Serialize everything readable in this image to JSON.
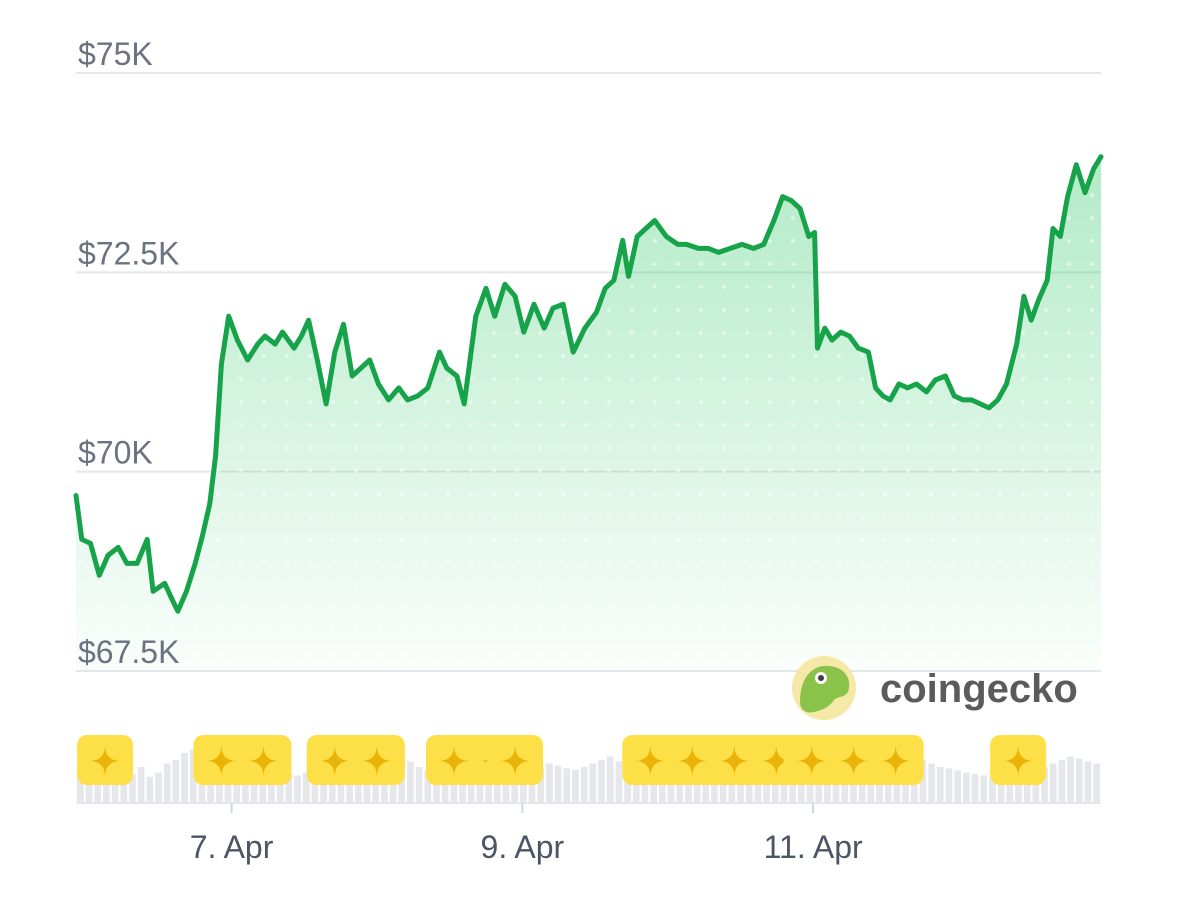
{
  "chart_data": {
    "type": "area",
    "title": "",
    "xlabel": "",
    "ylabel": "",
    "ylim": [
      67500,
      75000
    ],
    "y_ticks": [
      {
        "value": 75000,
        "label": "$75K"
      },
      {
        "value": 72500,
        "label": "$72.5K"
      },
      {
        "value": 70000,
        "label": "$70K"
      },
      {
        "value": 67500,
        "label": "$67.5K"
      }
    ],
    "x_range": [
      0,
      7.05
    ],
    "x_ticks": [
      {
        "day": 1.07,
        "label": "7. Apr"
      },
      {
        "day": 3.07,
        "label": "9. Apr"
      },
      {
        "day": 5.07,
        "label": "11. Apr"
      }
    ],
    "x_unit": "days from 6 Apr",
    "series": [
      {
        "color": "#16a34a",
        "points": [
          [
            0.0,
            69700
          ],
          [
            0.04,
            69150
          ],
          [
            0.1,
            69100
          ],
          [
            0.16,
            68700
          ],
          [
            0.22,
            68950
          ],
          [
            0.29,
            69050
          ],
          [
            0.35,
            68850
          ],
          [
            0.42,
            68850
          ],
          [
            0.49,
            69150
          ],
          [
            0.53,
            68500
          ],
          [
            0.61,
            68600
          ],
          [
            0.66,
            68400
          ],
          [
            0.7,
            68250
          ],
          [
            0.76,
            68500
          ],
          [
            0.82,
            68850
          ],
          [
            0.87,
            69200
          ],
          [
            0.92,
            69600
          ],
          [
            0.96,
            70200
          ],
          [
            1.0,
            71350
          ],
          [
            1.05,
            71950
          ],
          [
            1.11,
            71650
          ],
          [
            1.18,
            71400
          ],
          [
            1.25,
            71600
          ],
          [
            1.3,
            71700
          ],
          [
            1.37,
            71600
          ],
          [
            1.42,
            71750
          ],
          [
            1.5,
            71550
          ],
          [
            1.55,
            71700
          ],
          [
            1.6,
            71900
          ],
          [
            1.66,
            71400
          ],
          [
            1.72,
            70850
          ],
          [
            1.78,
            71500
          ],
          [
            1.84,
            71850
          ],
          [
            1.9,
            71200
          ],
          [
            1.96,
            71300
          ],
          [
            2.02,
            71400
          ],
          [
            2.08,
            71100
          ],
          [
            2.15,
            70900
          ],
          [
            2.22,
            71050
          ],
          [
            2.28,
            70900
          ],
          [
            2.35,
            70950
          ],
          [
            2.42,
            71050
          ],
          [
            2.5,
            71500
          ],
          [
            2.55,
            71300
          ],
          [
            2.62,
            71200
          ],
          [
            2.67,
            70850
          ],
          [
            2.75,
            71950
          ],
          [
            2.82,
            72300
          ],
          [
            2.88,
            71950
          ],
          [
            2.95,
            72350
          ],
          [
            3.02,
            72200
          ],
          [
            3.08,
            71750
          ],
          [
            3.15,
            72100
          ],
          [
            3.22,
            71800
          ],
          [
            3.28,
            72050
          ],
          [
            3.35,
            72100
          ],
          [
            3.42,
            71500
          ],
          [
            3.5,
            71800
          ],
          [
            3.58,
            72000
          ],
          [
            3.64,
            72300
          ],
          [
            3.7,
            72400
          ],
          [
            3.76,
            72900
          ],
          [
            3.8,
            72450
          ],
          [
            3.86,
            72950
          ],
          [
            3.92,
            73050
          ],
          [
            3.98,
            73150
          ],
          [
            4.06,
            72950
          ],
          [
            4.14,
            72850
          ],
          [
            4.2,
            72850
          ],
          [
            4.28,
            72800
          ],
          [
            4.35,
            72800
          ],
          [
            4.42,
            72750
          ],
          [
            4.5,
            72800
          ],
          [
            4.58,
            72850
          ],
          [
            4.66,
            72800
          ],
          [
            4.73,
            72850
          ],
          [
            4.8,
            73150
          ],
          [
            4.86,
            73450
          ],
          [
            4.92,
            73400
          ],
          [
            4.98,
            73300
          ],
          [
            5.04,
            72950
          ],
          [
            5.08,
            73000
          ],
          [
            5.1,
            71550
          ],
          [
            5.15,
            71800
          ],
          [
            5.2,
            71650
          ],
          [
            5.26,
            71750
          ],
          [
            5.32,
            71700
          ],
          [
            5.38,
            71550
          ],
          [
            5.45,
            71500
          ],
          [
            5.5,
            71050
          ],
          [
            5.55,
            70950
          ],
          [
            5.6,
            70900
          ],
          [
            5.66,
            71100
          ],
          [
            5.72,
            71050
          ],
          [
            5.78,
            71100
          ],
          [
            5.85,
            71000
          ],
          [
            5.91,
            71150
          ],
          [
            5.98,
            71200
          ],
          [
            6.04,
            70950
          ],
          [
            6.1,
            70900
          ],
          [
            6.16,
            70900
          ],
          [
            6.22,
            70850
          ],
          [
            6.28,
            70800
          ],
          [
            6.34,
            70900
          ],
          [
            6.4,
            71100
          ],
          [
            6.47,
            71600
          ],
          [
            6.52,
            72200
          ],
          [
            6.57,
            71900
          ],
          [
            6.62,
            72150
          ],
          [
            6.68,
            72400
          ],
          [
            6.72,
            73050
          ],
          [
            6.77,
            72950
          ],
          [
            6.82,
            73450
          ],
          [
            6.88,
            73850
          ],
          [
            6.94,
            73500
          ],
          [
            7.0,
            73800
          ],
          [
            7.05,
            73950
          ]
        ]
      }
    ],
    "volume": [
      0.35,
      0.4,
      0.3,
      0.42,
      0.45,
      0.38,
      0.4,
      0.5,
      0.36,
      0.42,
      0.55,
      0.6,
      0.7,
      0.75,
      0.65,
      0.6,
      0.55,
      0.62,
      0.58,
      0.5,
      0.45,
      0.5,
      0.48,
      0.42,
      0.4,
      0.38,
      0.42,
      0.45,
      0.4,
      0.36,
      0.38,
      0.42,
      0.4,
      0.46,
      0.5,
      0.48,
      0.55,
      0.6,
      0.58,
      0.5,
      0.45,
      0.42,
      0.4,
      0.38,
      0.4,
      0.42,
      0.44,
      0.4,
      0.38,
      0.36,
      0.4,
      0.42,
      0.45,
      0.5,
      0.55,
      0.52,
      0.48,
      0.46,
      0.5,
      0.55,
      0.6,
      0.65,
      0.58,
      0.5,
      0.45,
      0.42,
      0.4,
      0.38,
      0.36,
      0.35,
      0.38,
      0.4,
      0.42,
      0.45,
      0.48,
      0.5,
      0.55,
      0.6,
      0.58,
      0.52,
      0.5,
      0.48,
      0.45,
      0.42,
      0.4,
      0.38,
      0.36,
      0.38,
      0.4,
      0.42,
      0.45,
      0.5,
      0.55,
      0.6,
      0.65,
      0.7,
      0.68,
      0.6,
      0.55,
      0.5,
      0.48,
      0.45,
      0.42,
      0.4,
      0.38,
      0.36,
      0.38,
      0.4,
      0.42,
      0.45,
      0.48,
      0.5,
      0.55,
      0.6,
      0.65,
      0.62,
      0.58,
      0.55
    ],
    "events": [
      {
        "day": 0.2,
        "count": 1
      },
      {
        "day": 1.0,
        "count": 2
      },
      {
        "day": 1.78,
        "count": 2
      },
      {
        "day": 2.6,
        "count": 2
      },
      {
        "day": 3.02,
        "count": 1
      },
      {
        "day": 3.95,
        "count": 4
      },
      {
        "day": 5.06,
        "count": 3
      },
      {
        "day": 6.48,
        "count": 1
      }
    ],
    "grid": true,
    "legend": "none",
    "fill_color": "#22c55e",
    "badge_color": "#fde047"
  },
  "watermark": {
    "text": "coingecko"
  }
}
